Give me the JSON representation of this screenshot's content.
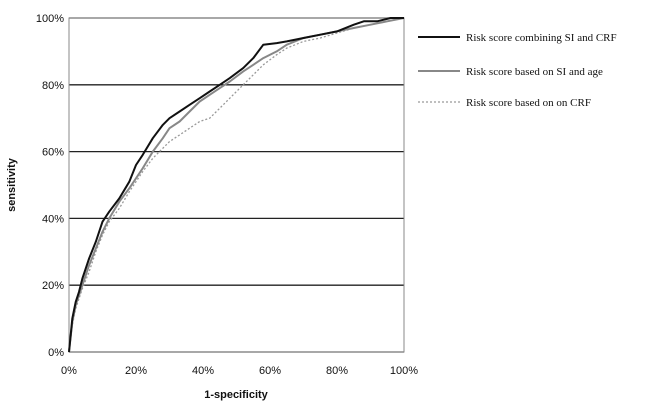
{
  "chart_data": {
    "type": "line",
    "title": "",
    "xlabel": "1-specificity",
    "ylabel": "sensitivity",
    "xlim": [
      0,
      100
    ],
    "ylim": [
      0,
      100
    ],
    "x_ticks": [
      "0%",
      "20%",
      "40%",
      "60%",
      "80%",
      "100%"
    ],
    "y_ticks": [
      "0%",
      "20%",
      "40%",
      "60%",
      "80%",
      "100%"
    ],
    "grid": "horizontal",
    "legend_position": "right",
    "series": [
      {
        "name": "Risk score combining SI and CRF",
        "color": "#111111",
        "dash": "solid",
        "points": [
          [
            0,
            0
          ],
          [
            1,
            10
          ],
          [
            2,
            15
          ],
          [
            3,
            18
          ],
          [
            4,
            22
          ],
          [
            6,
            28
          ],
          [
            8,
            33
          ],
          [
            10,
            39
          ],
          [
            12,
            42
          ],
          [
            15,
            46
          ],
          [
            18,
            51
          ],
          [
            20,
            56
          ],
          [
            22,
            59
          ],
          [
            25,
            64
          ],
          [
            28,
            68
          ],
          [
            30,
            70
          ],
          [
            33,
            72
          ],
          [
            36,
            74
          ],
          [
            39,
            76
          ],
          [
            42,
            78
          ],
          [
            45,
            80
          ],
          [
            48,
            82
          ],
          [
            52,
            85
          ],
          [
            55,
            88
          ],
          [
            58,
            92
          ],
          [
            62,
            92.5
          ],
          [
            65,
            93
          ],
          [
            70,
            94
          ],
          [
            75,
            95
          ],
          [
            80,
            96
          ],
          [
            85,
            98
          ],
          [
            88,
            99
          ],
          [
            92,
            99
          ],
          [
            96,
            100
          ],
          [
            100,
            100
          ]
        ]
      },
      {
        "name": "Risk score based on SI and age",
        "color": "#888888",
        "dash": "solid",
        "points": [
          [
            0,
            0
          ],
          [
            1,
            9
          ],
          [
            2,
            14
          ],
          [
            3,
            17
          ],
          [
            4,
            20
          ],
          [
            6,
            26
          ],
          [
            8,
            31
          ],
          [
            10,
            36
          ],
          [
            12,
            40
          ],
          [
            15,
            45
          ],
          [
            18,
            49
          ],
          [
            20,
            52
          ],
          [
            22,
            55
          ],
          [
            25,
            60
          ],
          [
            28,
            64
          ],
          [
            30,
            67
          ],
          [
            33,
            69
          ],
          [
            36,
            72
          ],
          [
            39,
            75
          ],
          [
            42,
            77
          ],
          [
            45,
            79
          ],
          [
            48,
            81
          ],
          [
            52,
            84
          ],
          [
            55,
            86
          ],
          [
            58,
            88
          ],
          [
            62,
            90
          ],
          [
            65,
            92
          ],
          [
            70,
            94
          ],
          [
            75,
            95
          ],
          [
            80,
            96
          ],
          [
            85,
            97
          ],
          [
            90,
            98
          ],
          [
            95,
            99
          ],
          [
            100,
            100
          ]
        ]
      },
      {
        "name": "Risk score based on on CRF",
        "color": "#999999",
        "dash": "dotted",
        "points": [
          [
            0,
            0
          ],
          [
            1,
            8
          ],
          [
            2,
            13
          ],
          [
            3,
            16
          ],
          [
            4,
            19
          ],
          [
            6,
            24
          ],
          [
            8,
            30
          ],
          [
            10,
            35
          ],
          [
            12,
            39
          ],
          [
            15,
            43
          ],
          [
            18,
            48
          ],
          [
            20,
            51
          ],
          [
            22,
            54
          ],
          [
            25,
            58
          ],
          [
            28,
            61
          ],
          [
            30,
            63
          ],
          [
            33,
            65
          ],
          [
            36,
            67
          ],
          [
            39,
            69
          ],
          [
            42,
            70
          ],
          [
            45,
            73
          ],
          [
            48,
            76
          ],
          [
            52,
            80
          ],
          [
            55,
            83
          ],
          [
            58,
            86
          ],
          [
            62,
            89
          ],
          [
            65,
            91
          ],
          [
            70,
            93
          ],
          [
            75,
            94
          ],
          [
            80,
            95.5
          ],
          [
            85,
            97
          ],
          [
            90,
            98
          ],
          [
            95,
            99
          ],
          [
            100,
            100
          ]
        ]
      }
    ]
  }
}
